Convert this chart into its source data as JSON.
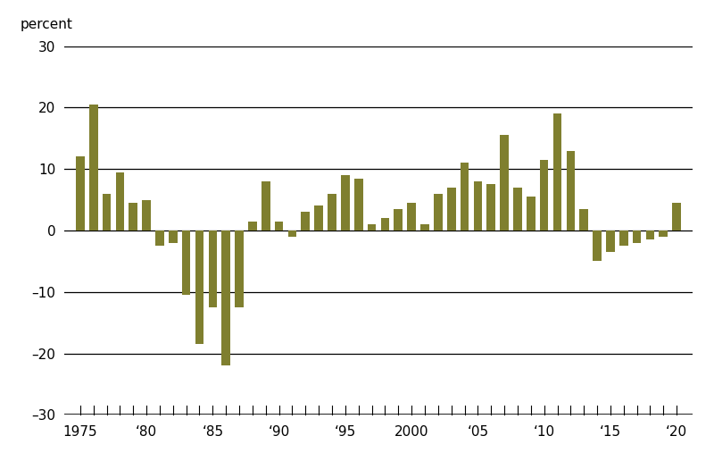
{
  "years": [
    1975,
    1976,
    1977,
    1978,
    1979,
    1980,
    1981,
    1982,
    1983,
    1984,
    1985,
    1986,
    1987,
    1988,
    1989,
    1990,
    1991,
    1992,
    1993,
    1994,
    1995,
    1996,
    1997,
    1998,
    1999,
    2000,
    2001,
    2002,
    2003,
    2004,
    2005,
    2006,
    2007,
    2008,
    2009,
    2010,
    2011,
    2012,
    2013,
    2014,
    2015,
    2016,
    2017,
    2018,
    2019,
    2020
  ],
  "values": [
    12.0,
    20.5,
    6.0,
    9.5,
    4.5,
    5.0,
    -2.5,
    -2.0,
    -10.5,
    -18.5,
    -12.5,
    -22.0,
    -12.5,
    1.5,
    8.0,
    1.5,
    -1.0,
    3.0,
    4.0,
    6.0,
    9.0,
    8.5,
    1.0,
    2.0,
    3.5,
    4.5,
    1.0,
    6.0,
    7.0,
    11.0,
    8.0,
    7.5,
    15.5,
    7.0,
    5.5,
    11.5,
    19.0,
    13.0,
    3.5,
    -5.0,
    -3.5,
    -2.5,
    -2.0,
    -1.5,
    -1.0,
    4.5
  ],
  "bar_color": "#7f7f2f",
  "background_color": "#ffffff",
  "ylabel": "percent",
  "ylim": [
    -30,
    30
  ],
  "yticks": [
    -30,
    -20,
    -10,
    0,
    10,
    20,
    30
  ],
  "ytick_labels": [
    "–30",
    "–20",
    "–10",
    "0",
    "10",
    "20",
    "30"
  ],
  "xtick_labels": [
    "1975",
    "‘80",
    "‘85",
    "‘90",
    "‘95",
    "2000",
    "‘05",
    "‘10",
    "‘15",
    "‘20"
  ],
  "xtick_positions": [
    1975,
    1980,
    1985,
    1990,
    1995,
    2000,
    2005,
    2010,
    2015,
    2020
  ],
  "bar_width": 0.65
}
